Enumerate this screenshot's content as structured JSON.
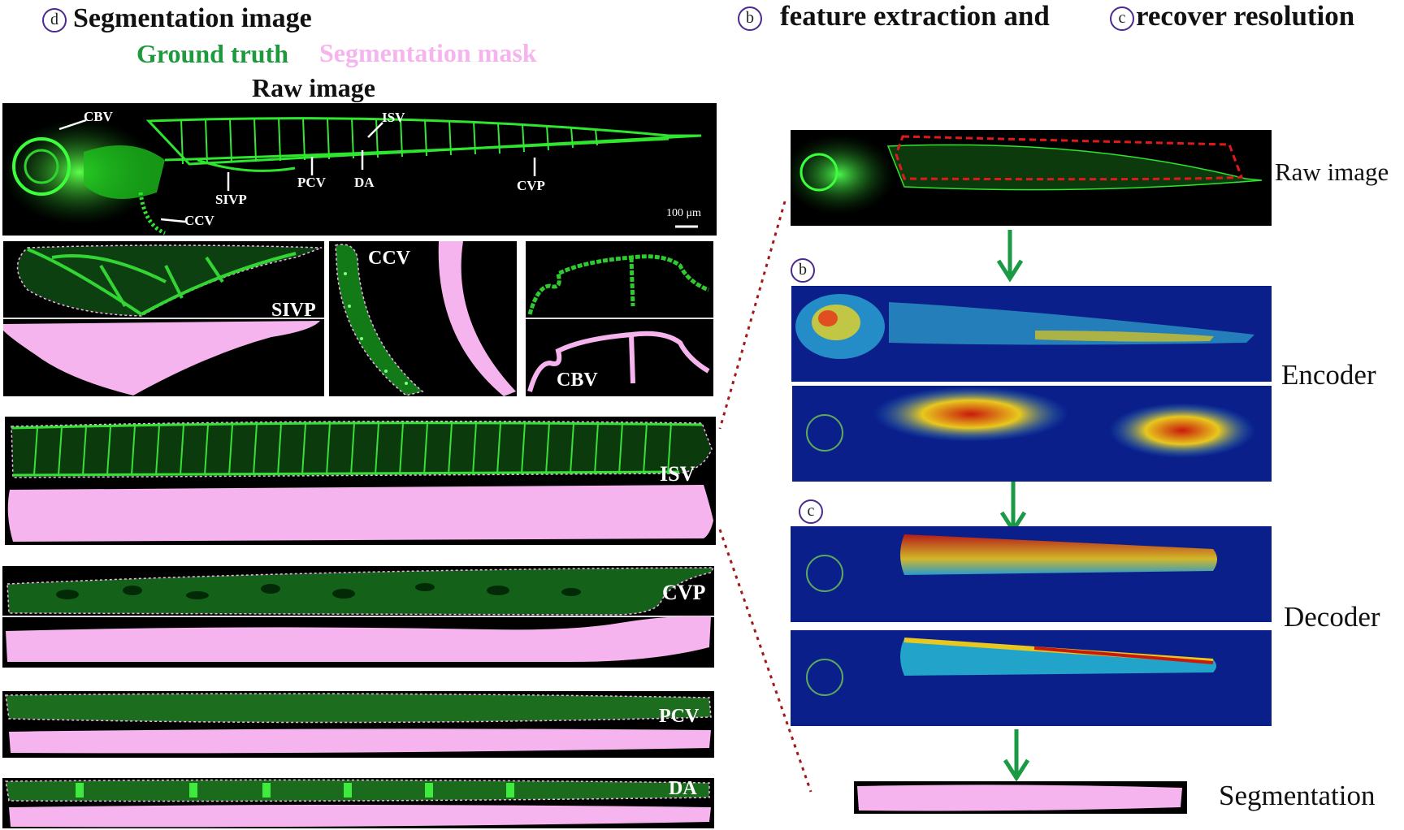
{
  "headers": {
    "left_circle": "d",
    "left_title": "Segmentation image",
    "legend_ground_truth": "Ground truth",
    "legend_mask": "Segmentation mask",
    "raw_image_title": "Raw image",
    "right_circle_b": "b",
    "right_title_b": "feature extraction and",
    "right_circle_c": "c",
    "right_title_c": "recover resolution"
  },
  "raw_labels": {
    "cbv": "CBV",
    "isv": "ISV",
    "sivp": "SIVP",
    "pcv": "PCV",
    "da": "DA",
    "cvp": "CVP",
    "ccv": "CCV",
    "scale": "100 μm"
  },
  "panel_labels": {
    "sivp": "SIVP",
    "ccv": "CCV",
    "cbv": "CBV",
    "isv": "ISV",
    "cvp": "CVP",
    "pcv": "PCV",
    "da": "DA"
  },
  "pipeline": {
    "raw_image": "Raw image",
    "step_b": "b",
    "encoder": "Encoder",
    "step_c": "c",
    "decoder": "Decoder",
    "segmentation": "Segmentation"
  },
  "colors": {
    "ground_truth": "#1e9a3c",
    "mask": "#f6b4ee",
    "arrow": "#1a9a44",
    "dotted": "#a11a1a",
    "circle": "#4b2a8f"
  }
}
